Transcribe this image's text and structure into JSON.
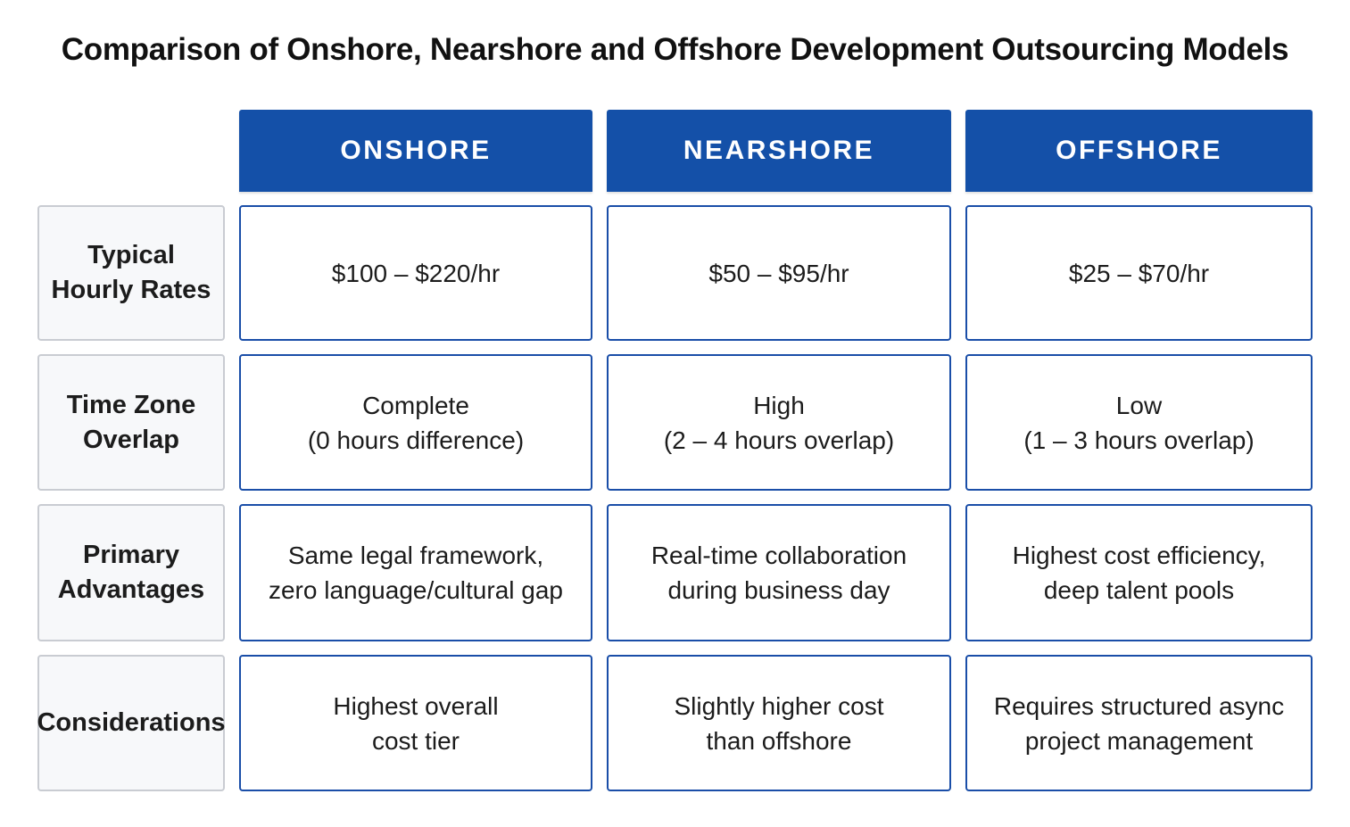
{
  "title": "Comparison of Onshore, Nearshore and Offshore Development Outsourcing Models",
  "colors": {
    "header_bg": "#1450a8",
    "cell_border": "#1a4ea8",
    "label_border": "#c9ccd2",
    "label_bg": "#f7f8fa"
  },
  "columns": [
    "ONSHORE",
    "NEARSHORE",
    "OFFSHORE"
  ],
  "rows": [
    {
      "label": "Typical\nHourly Rates",
      "cells": [
        "$100 – $220/hr",
        "$50 – $95/hr",
        "$25 – $70/hr"
      ]
    },
    {
      "label": "Time Zone\nOverlap",
      "cells": [
        "Complete\n(0 hours difference)",
        "High\n(2 – 4 hours overlap)",
        "Low\n(1 – 3 hours overlap)"
      ]
    },
    {
      "label": "Primary\nAdvantages",
      "cells": [
        "Same legal framework,\nzero language/cultural gap",
        "Real-time collaboration\nduring business day",
        "Highest cost efficiency,\ndeep talent pools"
      ]
    },
    {
      "label": "Considerations",
      "cells": [
        "Highest overall\ncost tier",
        "Slightly higher cost\nthan offshore",
        "Requires structured async\nproject management"
      ]
    }
  ]
}
